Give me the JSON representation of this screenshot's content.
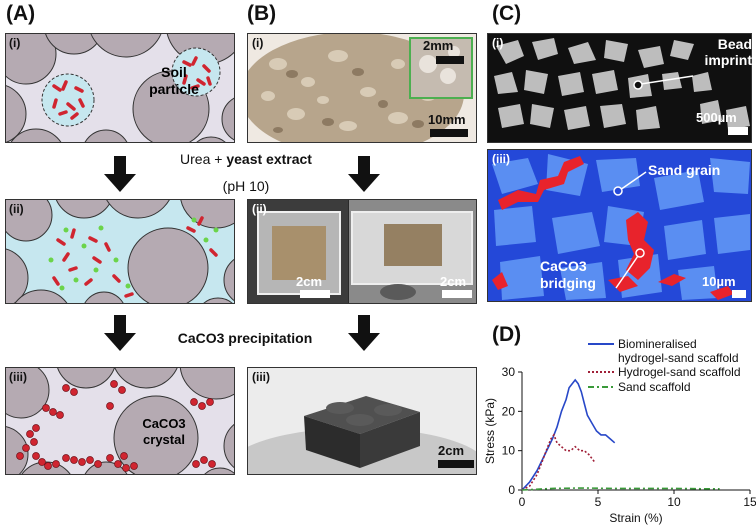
{
  "panels": {
    "A": {
      "letter": "(A)",
      "sub1": "(i)",
      "sub2": "(ii)",
      "sub3": "(iii)",
      "soil_label": "Soil particle",
      "crystal_label": "CaCO3 crystal"
    },
    "B": {
      "letter": "(B)",
      "sub1": "(i)",
      "sub2": "(ii)",
      "sub3": "(iii)",
      "scale_1": "10mm",
      "scale_inset": "2mm",
      "scale_2a": "2cm",
      "scale_2b": "2cm",
      "scale_3": "2cm"
    },
    "C": {
      "letter": "(C)",
      "sub1": "(i)",
      "sub2": "(iii)",
      "bead_label": "Bead imprint",
      "scale_1": "500µm",
      "sand_label": "Sand grain",
      "bridging_label": "CaCO3 bridging",
      "scale_2": "10µm"
    },
    "D": {
      "letter": "(D)"
    }
  },
  "process": {
    "step1_plain": "Urea + ",
    "step1_bold": "yeast extract",
    "step1_ph": "(pH 10)",
    "step2": "CaCO3 precipitation"
  },
  "colors": {
    "grain": "#b5aab2",
    "pore": "#e4e0ea",
    "liquid": "#c6e7ef",
    "bacteria": "#d02530",
    "nutrient": "#6bd44a",
    "blue_series": "#2848c8",
    "red_series": "#a02038",
    "green_series": "#3a9a3a"
  },
  "chart_data": {
    "type": "line",
    "xlabel": "Strain (%)",
    "ylabel": "Stress (kPa)",
    "xlim": [
      0,
      15
    ],
    "ylim": [
      0,
      30
    ],
    "xticks": [
      "0",
      "5",
      "10",
      "15"
    ],
    "yticks": [
      "0",
      "10",
      "20",
      "30"
    ],
    "legend_position": "top-right",
    "series": [
      {
        "name": "Biomineralised hydrogel-sand scaffold",
        "color": "#2848c8",
        "dash": "",
        "x": [
          0,
          0.5,
          1.0,
          1.5,
          2.0,
          2.3,
          2.6,
          2.9,
          3.1,
          3.3,
          3.5,
          3.7,
          3.9,
          4.1,
          4.3,
          4.6,
          4.9,
          5.2,
          5.5,
          5.8,
          6.1
        ],
        "y": [
          0,
          2,
          5,
          9,
          13,
          16,
          20,
          23,
          26,
          27,
          28,
          27,
          25,
          22,
          19,
          17,
          15,
          14,
          14,
          13,
          12
        ]
      },
      {
        "name": "Hydrogel-sand scaffold",
        "color": "#a02038",
        "dash": "2,2",
        "x": [
          0,
          0.5,
          1.0,
          1.4,
          1.7,
          1.9,
          2.1,
          2.3,
          2.6,
          2.9,
          3.2,
          3.5,
          3.8,
          4.1,
          4.4,
          4.8
        ],
        "y": [
          0,
          1,
          4,
          8,
          11,
          13,
          14,
          12,
          11,
          10,
          10,
          11,
          10,
          10,
          9,
          7
        ]
      },
      {
        "name": "Sand scaffold",
        "color": "#3a9a3a",
        "dash": "6,3,2,3",
        "x": [
          0,
          2,
          4,
          6,
          8,
          10,
          12,
          13
        ],
        "y": [
          0,
          0.4,
          0.5,
          0.4,
          0.4,
          0.4,
          0.3,
          0.3
        ]
      }
    ]
  }
}
